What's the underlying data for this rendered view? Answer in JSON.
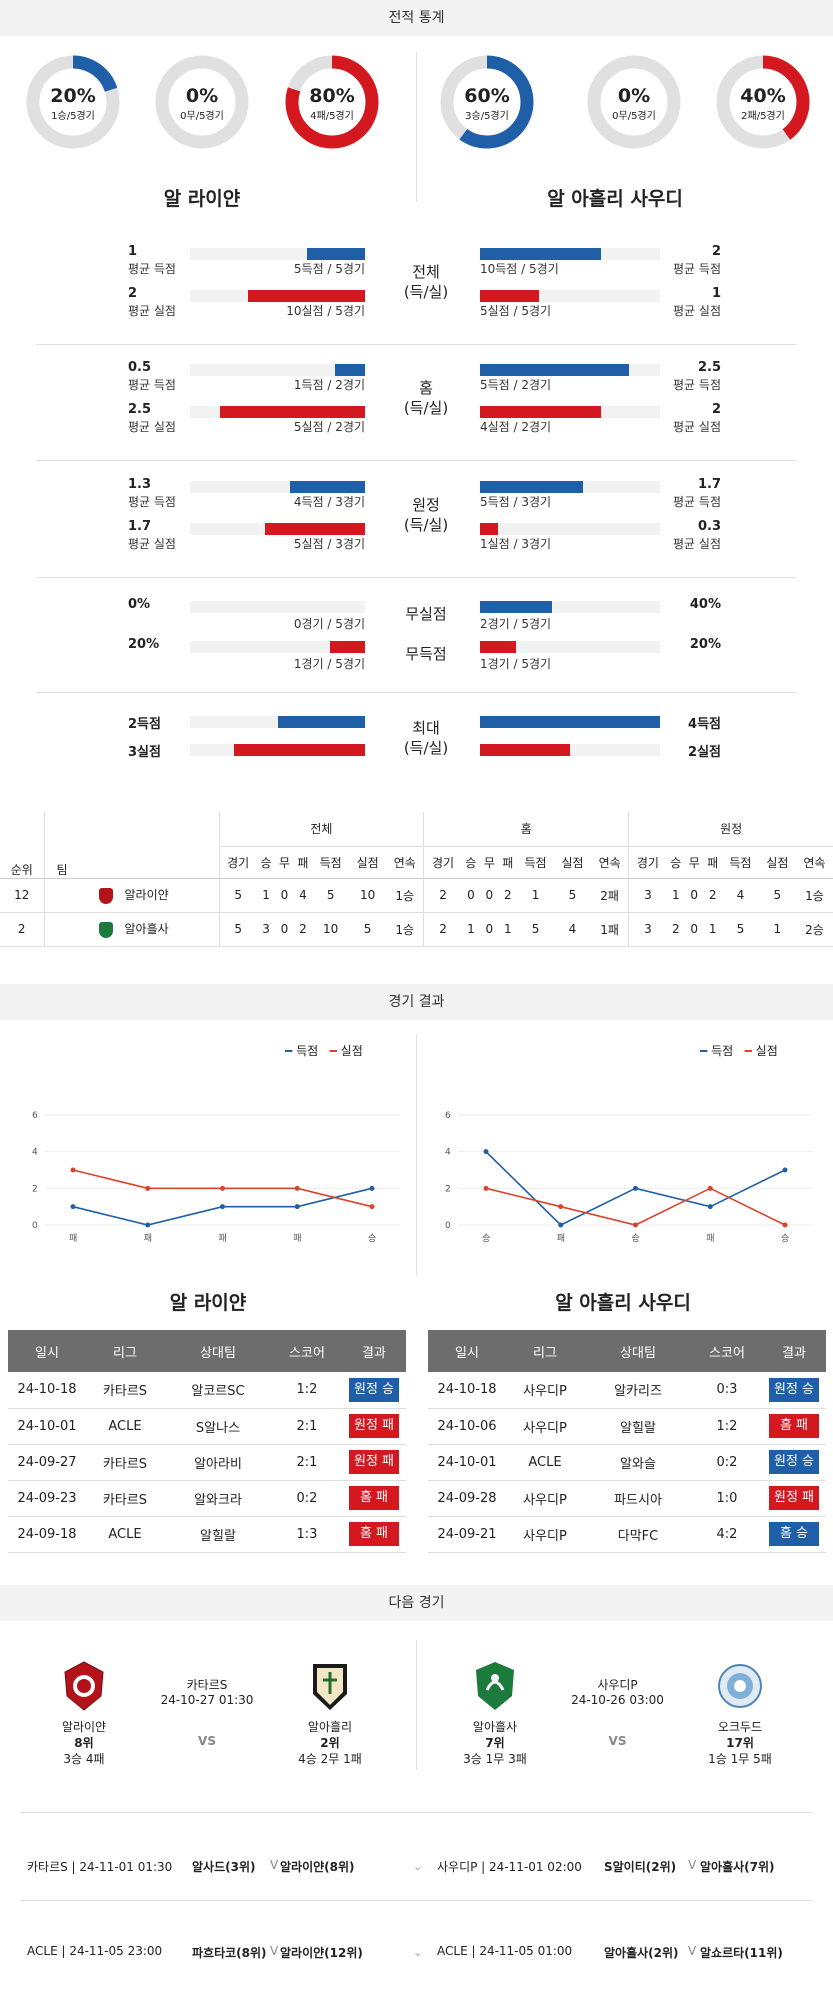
{
  "sections": {
    "stats": "전적 통계",
    "results": "경기 결과",
    "next": "다음 경기"
  },
  "donuts": [
    {
      "pct": "20%",
      "sub": "1승/5경기",
      "value": 0.2,
      "color": "#1f5fa8"
    },
    {
      "pct": "0%",
      "sub": "0무/5경기",
      "value": 0.0,
      "color": "#1f5fa8"
    },
    {
      "pct": "80%",
      "sub": "4패/5경기",
      "value": 0.8,
      "color": "#d31820"
    },
    {
      "pct": "60%",
      "sub": "3승/5경기",
      "value": 0.6,
      "color": "#1f5fa8"
    },
    {
      "pct": "0%",
      "sub": "0무/5경기",
      "value": 0.0,
      "color": "#1f5fa8"
    },
    {
      "pct": "40%",
      "sub": "2패/5경기",
      "value": 0.4,
      "color": "#d31820"
    }
  ],
  "teams": {
    "home": "알 라이얀",
    "away": "알 아흘리 사우디"
  },
  "compare": [
    {
      "mid": [
        "전체",
        "(득/실)"
      ],
      "rows": [
        {
          "lv": "1",
          "ll": "평균 득점",
          "lbar": "5득점 / 5경기",
          "lfrac": 0.33,
          "rv": "2",
          "rl": "평균 득점",
          "rbar": "10득점 / 5경기",
          "rfrac": 0.67,
          "color": "blue"
        },
        {
          "lv": "2",
          "ll": "평균 실점",
          "lbar": "10실점 / 5경기",
          "lfrac": 0.67,
          "rv": "1",
          "rl": "평균 실점",
          "rbar": "5실점 / 5경기",
          "rfrac": 0.33,
          "color": "red"
        }
      ]
    },
    {
      "mid": [
        "홈",
        "(득/실)"
      ],
      "rows": [
        {
          "lv": "0.5",
          "ll": "평균 득점",
          "lbar": "1득점 / 2경기",
          "lfrac": 0.17,
          "rv": "2.5",
          "rl": "평균 득점",
          "rbar": "5득점 / 2경기",
          "rfrac": 0.83,
          "color": "blue"
        },
        {
          "lv": "2.5",
          "ll": "평균 실점",
          "lbar": "5실점 / 2경기",
          "lfrac": 0.83,
          "rv": "2",
          "rl": "평균 실점",
          "rbar": "4실점 / 2경기",
          "rfrac": 0.67,
          "color": "red"
        }
      ]
    },
    {
      "mid": [
        "원정",
        "(득/실)"
      ],
      "rows": [
        {
          "lv": "1.3",
          "ll": "평균 득점",
          "lbar": "4득점 / 3경기",
          "lfrac": 0.43,
          "rv": "1.7",
          "rl": "평균 득점",
          "rbar": "5득점 / 3경기",
          "rfrac": 0.57,
          "color": "blue"
        },
        {
          "lv": "1.7",
          "ll": "평균 실점",
          "lbar": "5실점 / 3경기",
          "lfrac": 0.57,
          "rv": "0.3",
          "rl": "평균 실점",
          "rbar": "1실점 / 3경기",
          "rfrac": 0.1,
          "color": "red"
        }
      ]
    }
  ],
  "cleansheet": {
    "mid1": "무실점",
    "mid2": "무득점",
    "l1": "0%",
    "l1bar": "0경기 / 5경기",
    "l1frac": 0.0,
    "l2": "20%",
    "l2bar": "1경기 / 5경기",
    "l2frac": 0.2,
    "r1": "40%",
    "r1bar": "2경기 / 5경기",
    "r1frac": 0.4,
    "r2": "20%",
    "r2bar": "1경기 / 5경기",
    "r2frac": 0.2
  },
  "maxrow": {
    "mid": [
      "최대",
      "(득/실)"
    ],
    "l1": "2득점",
    "l1frac": 0.5,
    "l2": "3실점",
    "l2frac": 0.75,
    "r1": "4득점",
    "r1frac": 1.0,
    "r2": "2실점",
    "r2frac": 0.5
  },
  "standings": {
    "groups": [
      "전체",
      "홈",
      "원정"
    ],
    "cols": [
      "순위",
      "팀"
    ],
    "sub": [
      "경기",
      "승",
      "무",
      "패",
      "득점",
      "실점",
      "연속"
    ],
    "rows": [
      {
        "rank": "12",
        "team": "알라이얀",
        "all": [
          "5",
          "1",
          "0",
          "4",
          "5",
          "10",
          "1승"
        ],
        "home": [
          "2",
          "0",
          "0",
          "2",
          "1",
          "5",
          "2패"
        ],
        "away": [
          "3",
          "1",
          "0",
          "2",
          "4",
          "5",
          "1승"
        ]
      },
      {
        "rank": "2",
        "team": "알아흘사",
        "all": [
          "5",
          "3",
          "0",
          "2",
          "10",
          "5",
          "1승"
        ],
        "home": [
          "2",
          "1",
          "0",
          "1",
          "5",
          "4",
          "1패"
        ],
        "away": [
          "3",
          "2",
          "0",
          "1",
          "5",
          "1",
          "2승"
        ]
      }
    ]
  },
  "chart_data": [
    {
      "type": "line",
      "categories": [
        "패",
        "패",
        "패",
        "패",
        "승"
      ],
      "ylim": [
        0,
        6
      ],
      "yticks": [
        0,
        2,
        4,
        6
      ],
      "series": [
        {
          "name": "득점",
          "values": [
            1,
            0,
            1,
            1,
            2
          ],
          "color": "#1f5fa8"
        },
        {
          "name": "실점",
          "values": [
            3,
            2,
            2,
            2,
            1
          ],
          "color": "#d8442c"
        }
      ]
    },
    {
      "type": "line",
      "categories": [
        "승",
        "패",
        "승",
        "패",
        "승"
      ],
      "ylim": [
        0,
        6
      ],
      "yticks": [
        0,
        2,
        4,
        6
      ],
      "series": [
        {
          "name": "득점",
          "values": [
            4,
            0,
            2,
            1,
            3
          ],
          "color": "#1f5fa8"
        },
        {
          "name": "실점",
          "values": [
            2,
            1,
            0,
            2,
            0
          ],
          "color": "#d8442c"
        }
      ]
    }
  ],
  "results_headers": [
    "일시",
    "리그",
    "상대팀",
    "스코어",
    "결과"
  ],
  "results_left": [
    [
      "24-10-18",
      "카타르S",
      "알코르SC",
      "1:2",
      "원정 승",
      "win"
    ],
    [
      "24-10-01",
      "ACLE",
      "S알나스",
      "2:1",
      "원정 패",
      "lose"
    ],
    [
      "24-09-27",
      "카타르S",
      "알아라비",
      "2:1",
      "원정 패",
      "lose"
    ],
    [
      "24-09-23",
      "카타르S",
      "알와크라",
      "0:2",
      "홈 패",
      "lose"
    ],
    [
      "24-09-18",
      "ACLE",
      "알힐랄",
      "1:3",
      "홈 패",
      "lose"
    ]
  ],
  "results_right": [
    [
      "24-10-18",
      "사우디P",
      "알카리즈",
      "0:3",
      "원정 승",
      "win"
    ],
    [
      "24-10-06",
      "사우디P",
      "알힐랄",
      "1:2",
      "홈 패",
      "lose"
    ],
    [
      "24-10-01",
      "ACLE",
      "알와슬",
      "0:2",
      "원정 승",
      "win"
    ],
    [
      "24-09-28",
      "사우디P",
      "파드시아",
      "1:0",
      "원정 패",
      "lose"
    ],
    [
      "24-09-21",
      "사우디P",
      "다막FC",
      "4:2",
      "홈 승",
      "win"
    ]
  ],
  "next": {
    "left": {
      "league": "카타르S",
      "time": "24-10-27 01:30",
      "vs": "VS",
      "home": {
        "name": "알라이얀",
        "rank": "8위",
        "rec": "3승 4패"
      },
      "away": {
        "name": "알아흘리",
        "rank": "2위",
        "rec": "4승 2무 1패"
      }
    },
    "right": {
      "league": "사우디P",
      "time": "24-10-26 03:00",
      "vs": "VS",
      "home": {
        "name": "알아흘사",
        "rank": "7위",
        "rec": "3승 1무 3패"
      },
      "away": {
        "name": "오크두드",
        "rank": "17위",
        "rec": "1승 1무 5패"
      }
    }
  },
  "upcoming": [
    {
      "l_info": "카타르S | 24-11-01 01:30",
      "l_a": "알사드(3위)",
      "l_b": "알라이얀(8위)",
      "r_info": "사우디P | 24-11-01 02:00",
      "r_a": "S알이티(2위)",
      "r_b": "알아흘사(7위)"
    },
    {
      "l_info": "ACLE | 24-11-05 23:00",
      "l_a": "파흐타코(8위)",
      "l_b": "알라이얀(12위)",
      "r_info": "ACLE | 24-11-05 01:00",
      "r_a": "알아흘사(2위)",
      "r_b": "알쇼르타(11위)"
    }
  ],
  "vs_mark": "V"
}
